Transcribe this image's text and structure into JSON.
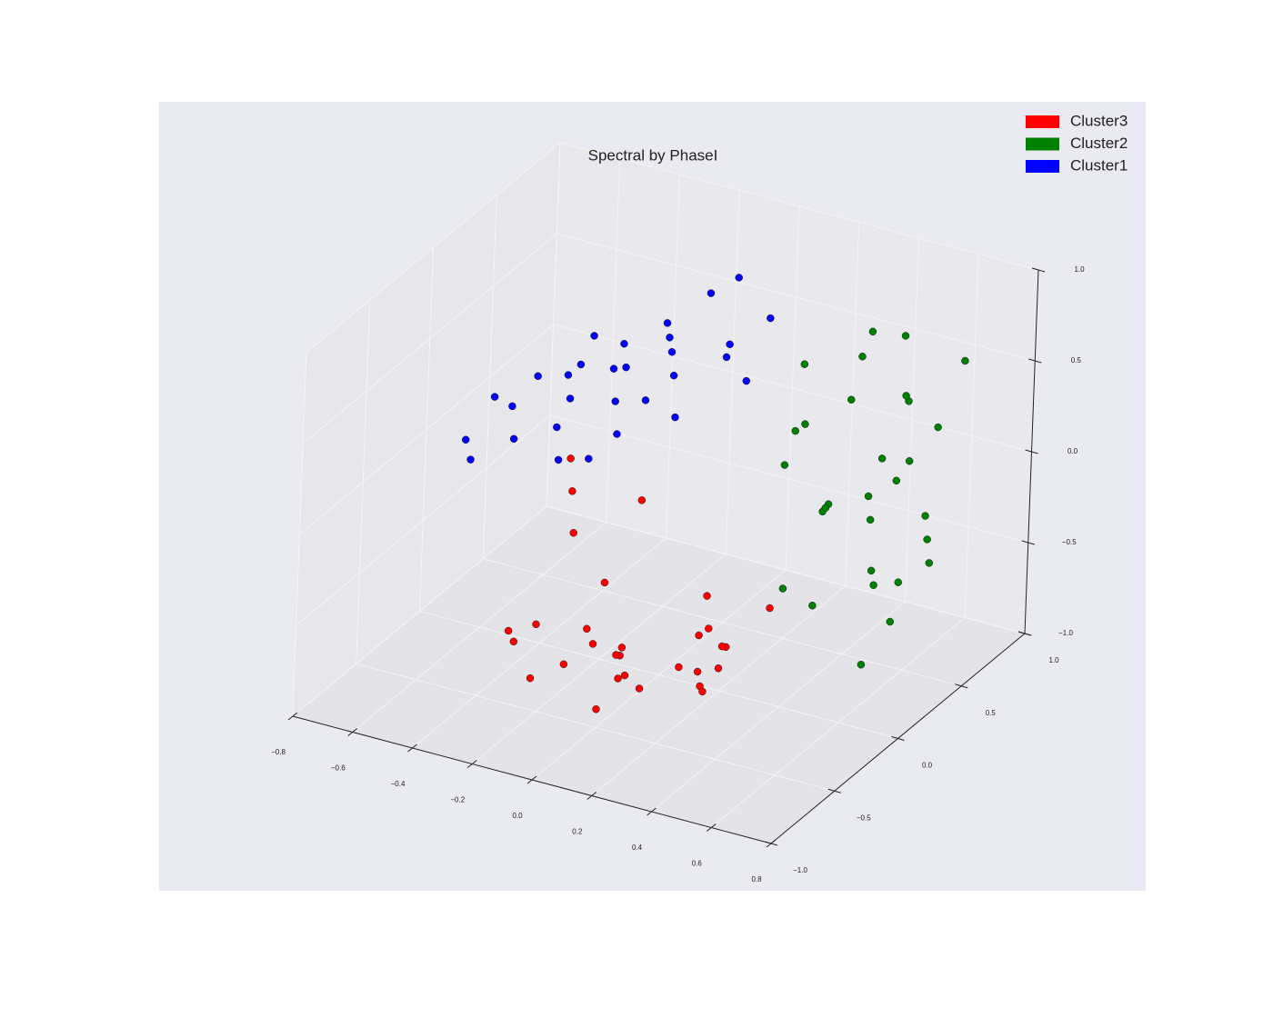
{
  "chart_data": {
    "type": "scatter3d",
    "title": "Spectral by PhaseI",
    "xlim": [
      -0.8,
      0.8
    ],
    "ylim": [
      -1.0,
      1.0
    ],
    "zlim": [
      -1.0,
      1.0
    ],
    "xticks": [
      {
        "value": -0.8,
        "label": "−0.8"
      },
      {
        "value": -0.6,
        "label": "−0.6"
      },
      {
        "value": -0.4,
        "label": "−0.4"
      },
      {
        "value": -0.2,
        "label": "−0.2"
      },
      {
        "value": 0,
        "label": "0.0"
      },
      0.2,
      0.4,
      0.6,
      0.8
    ],
    "yticks": [
      {
        "value": -1,
        "label": "−1.0"
      },
      {
        "value": -0.5,
        "label": "−0.5"
      },
      {
        "value": 0,
        "label": "0.0"
      },
      0.5,
      {
        "value": 1,
        "label": "1.0"
      }
    ],
    "zticks": [
      {
        "value": -1,
        "label": "−1.0"
      },
      {
        "value": -0.5,
        "label": "−0.5"
      },
      {
        "value": 0,
        "label": "0.0"
      },
      0.5,
      {
        "value": 1,
        "label": "1.0"
      }
    ],
    "grid": true,
    "legend": "upper right",
    "series": [
      {
        "name": "Cluster3",
        "color": "#ff0000",
        "x": [
          -0.3,
          -0.2,
          -0.1,
          0,
          0.1,
          0.2,
          0.3,
          0.4,
          -0.35,
          -0.15,
          0.05,
          0.25,
          0.45,
          -0.25,
          0.15,
          0.35,
          -0.05,
          0.0,
          0.2,
          0.3,
          -0.4,
          0.1,
          -0.1,
          0.4,
          0.25,
          -0.2,
          0.05,
          0.15,
          0.35,
          -0.3
        ],
        "y": [
          -0.5,
          -0.7,
          -0.3,
          -0.6,
          -0.4,
          -0.8,
          -0.2,
          -0.5,
          0.1,
          -0.1,
          -0.9,
          -0.3,
          -0.6,
          -0.4,
          0.0,
          -0.7,
          -0.2,
          -0.5,
          -0.1,
          -0.4,
          0.2,
          -0.6,
          -0.8,
          -0.1,
          -0.3,
          0.3,
          -0.4,
          -0.7,
          -0.5,
          0.0
        ],
        "z": [
          -0.6,
          -0.5,
          -0.7,
          -0.4,
          -0.8,
          -0.3,
          -0.6,
          -0.5,
          -0.2,
          -0.5,
          -0.4,
          -0.7,
          -0.3,
          -0.6,
          -0.5,
          -0.4,
          -0.8,
          -0.9,
          -0.6,
          -0.7,
          -0.1,
          -0.5,
          -0.6,
          -0.4,
          -0.5,
          -0.3,
          -0.75,
          -0.55,
          -0.65,
          -0.35
        ]
      },
      {
        "name": "Cluster2",
        "color": "#008000",
        "x": [
          0.3,
          0.5,
          0.7,
          0.4,
          0.6,
          0.8,
          0.35,
          0.55,
          0.75,
          0.45,
          0.65,
          0.25,
          0.5,
          0.7,
          0.6,
          0.4,
          0.3,
          0.55,
          0.75,
          0.65,
          0.45,
          0.2,
          0.5,
          0.6,
          0.7,
          0.35,
          0.8,
          0.4,
          0.55,
          0.65
        ],
        "y": [
          0.3,
          0.1,
          0.0,
          0.5,
          0.2,
          -0.1,
          0.7,
          0.4,
          0.3,
          0.8,
          0.6,
          0.5,
          0.0,
          0.2,
          0.4,
          0.3,
          0.9,
          0.6,
          -0.2,
          0.1,
          0.2,
          0.6,
          0.7,
          0.5,
          0.4,
          0.1,
          0.2,
          0.0,
          0.3,
          0.8
        ],
        "z": [
          0.3,
          0.1,
          -0.2,
          0.4,
          0.0,
          -0.3,
          0.5,
          0.2,
          -0.1,
          0.6,
          0.3,
          0.2,
          -0.4,
          -0.3,
          0.1,
          -0.1,
          0.5,
          0.4,
          -0.5,
          -0.2,
          0.0,
          0.45,
          0.35,
          0.15,
          -0.05,
          0.25,
          -0.15,
          -0.35,
          0.05,
          0.55
        ]
      },
      {
        "name": "Cluster1",
        "color": "#0000ff",
        "x": [
          -0.6,
          -0.5,
          -0.4,
          -0.3,
          -0.2,
          -0.1,
          0.0,
          -0.55,
          -0.45,
          -0.35,
          -0.25,
          -0.15,
          -0.05,
          -0.7,
          -0.65,
          -0.5,
          -0.4,
          -0.3,
          -0.2,
          -0.1,
          0.05,
          -0.6,
          -0.45,
          -0.35,
          -0.25,
          -0.15,
          -0.75,
          -0.5,
          -0.3,
          -0.2
        ],
        "y": [
          0.2,
          0.4,
          0.6,
          0.3,
          0.5,
          0.7,
          0.8,
          0.1,
          0.3,
          0.5,
          0.2,
          0.4,
          0.6,
          0.3,
          0.0,
          0.6,
          0.1,
          0.7,
          0.8,
          0.3,
          0.5,
          0.4,
          0.2,
          0.4,
          0.6,
          0.9,
          0.2,
          0.5,
          0.1,
          0.3
        ],
        "z": [
          0.1,
          0.2,
          0.3,
          0.2,
          0.4,
          0.3,
          0.5,
          0.0,
          0.15,
          0.25,
          0.1,
          0.35,
          0.45,
          0.05,
          -0.1,
          0.3,
          -0.05,
          0.4,
          0.55,
          0.2,
          0.35,
          0.15,
          0.05,
          0.3,
          0.4,
          0.6,
          -0.15,
          0.2,
          0.0,
          0.25
        ]
      }
    ]
  }
}
